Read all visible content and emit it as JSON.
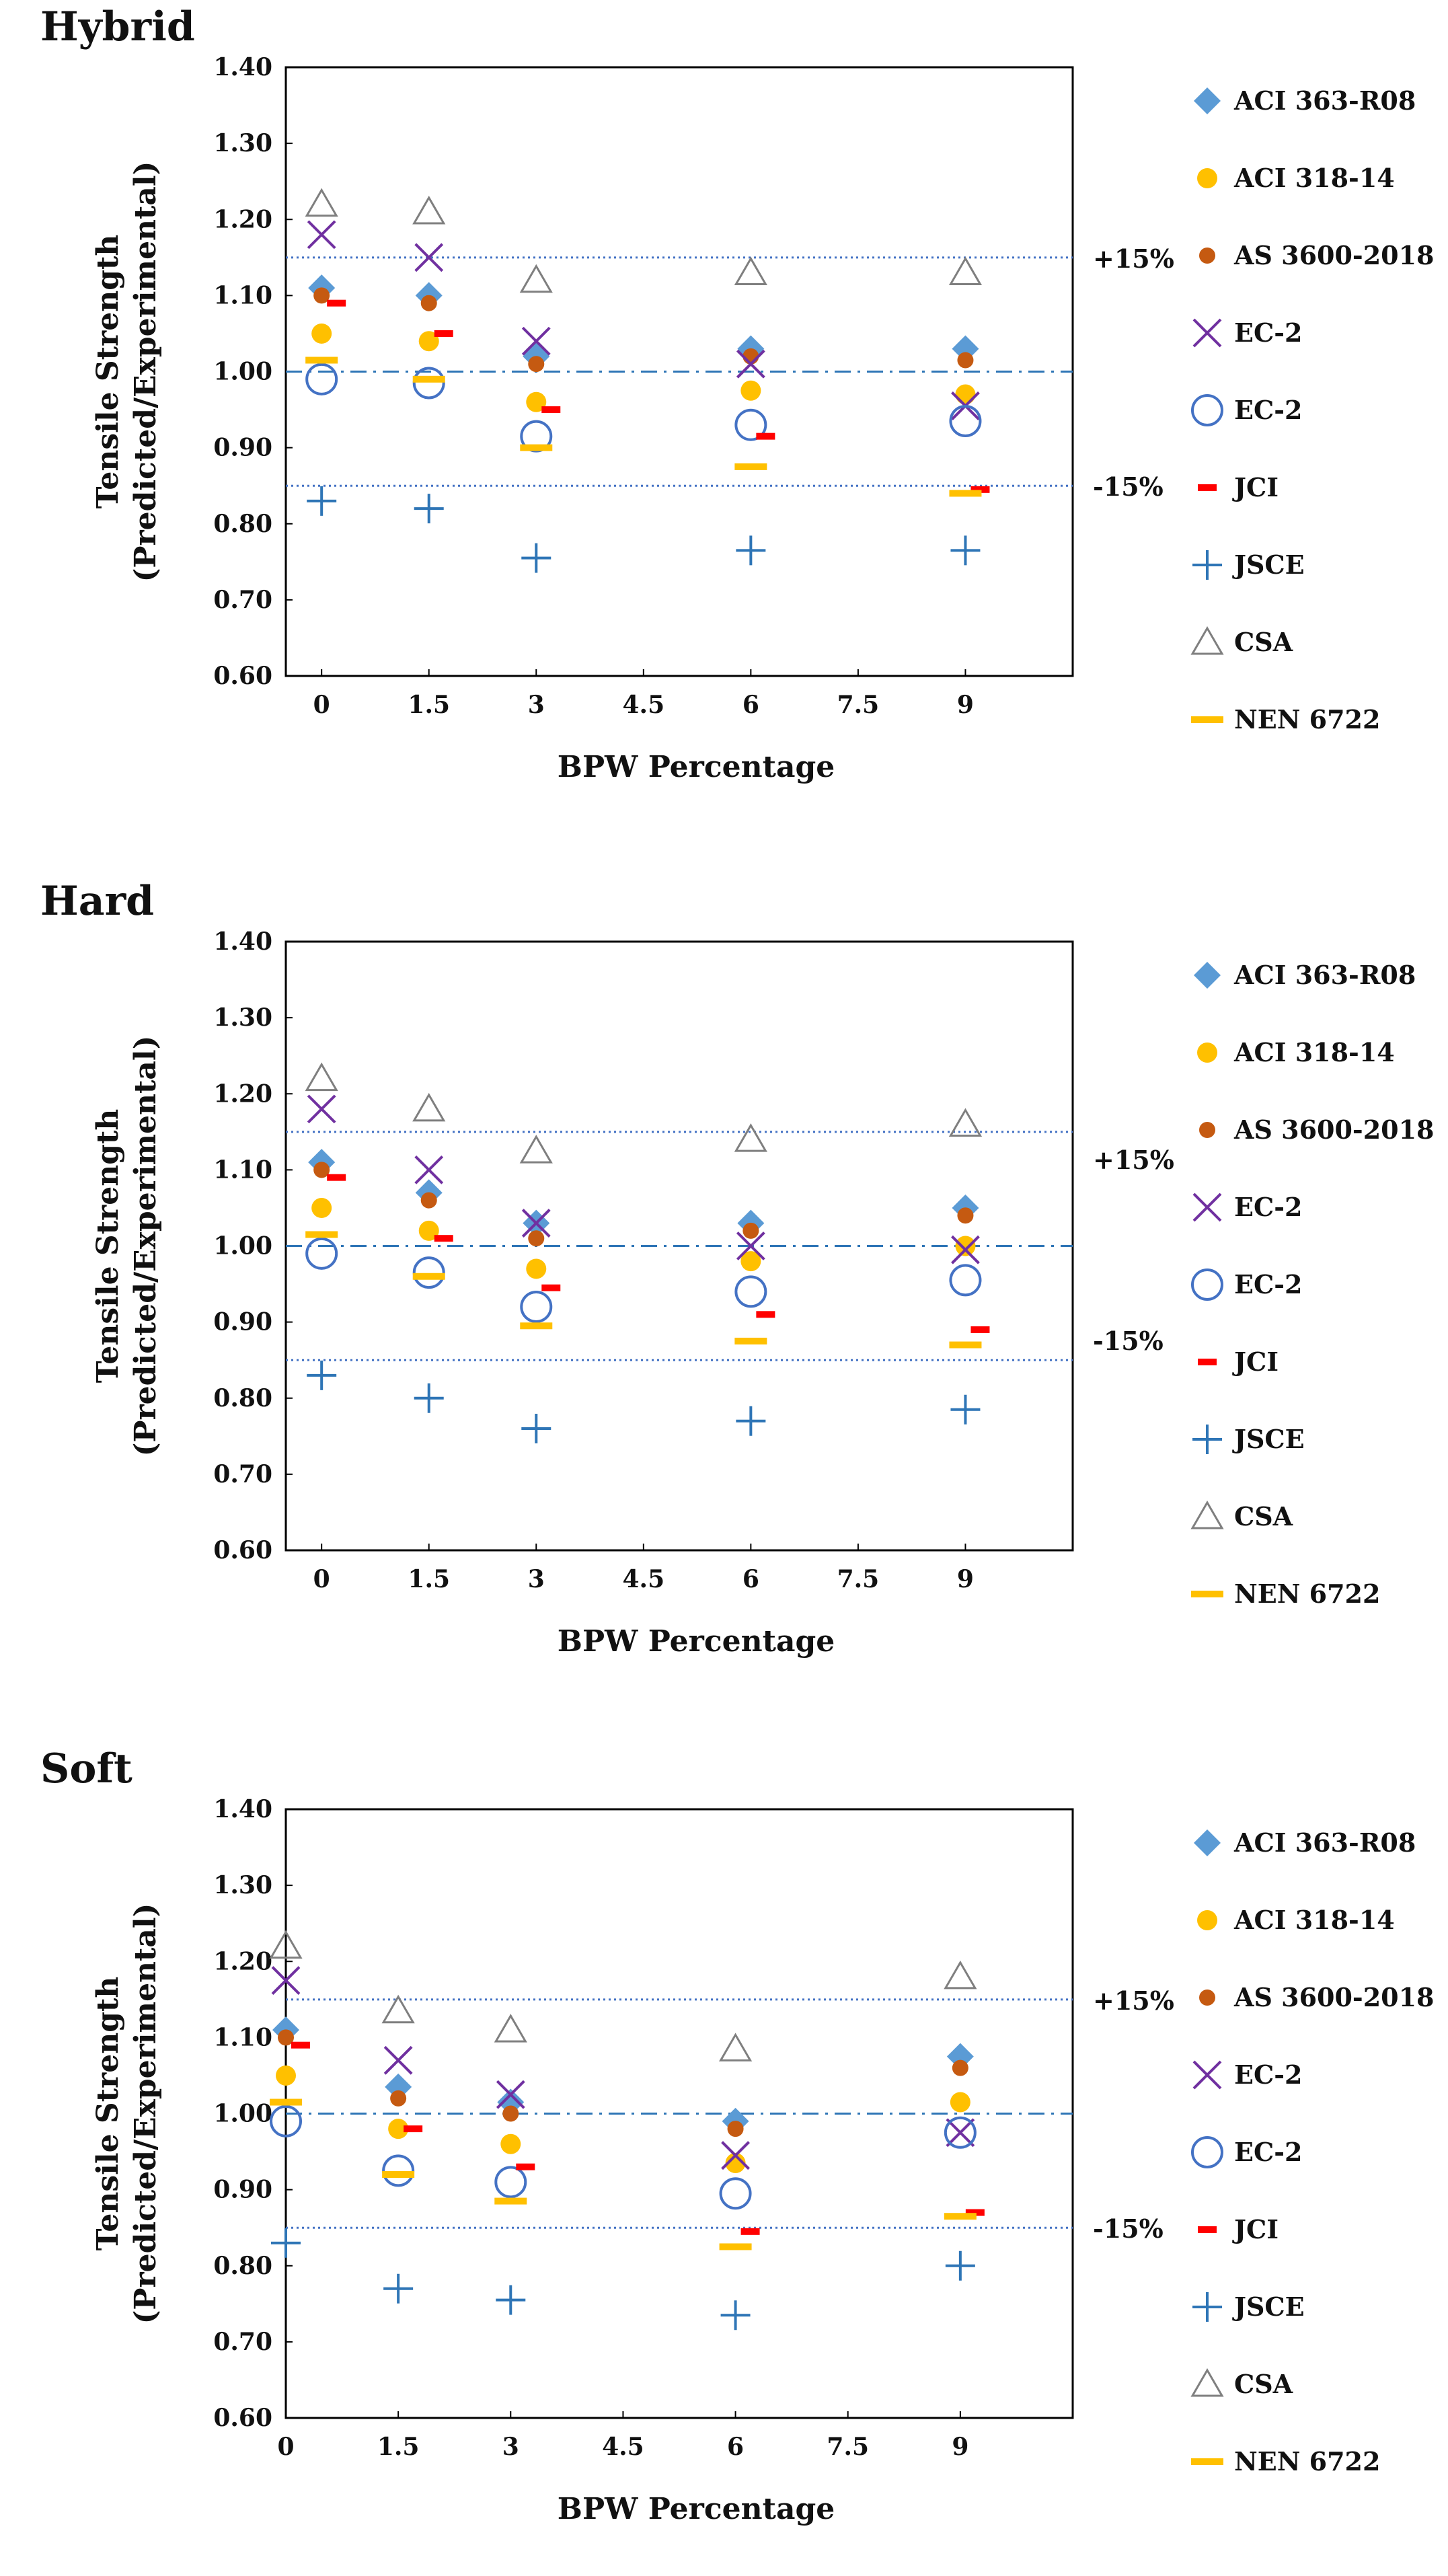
{
  "colors": {
    "aci363": "#5B9BD5",
    "aci318": "#FFC000",
    "as3600": "#C55A11",
    "ec2x": "#7030A0",
    "ec2o": "#4472C4",
    "jci": "#FF0000",
    "jsce": "#2E75B6",
    "csa": "#7F7F7F",
    "nen": "#FFC000",
    "ref": "#2E75B6",
    "band": "#4472C4"
  },
  "chart_data": [
    {
      "type": "scatter",
      "title": "Hybrid",
      "xlabel": "BPW Percentage",
      "ylabel": "Tensile Strength (Predicted/Experimental)",
      "ylabel_lines": [
        "Tensile Strength",
        "(Predicted/Experimental)"
      ],
      "x_ticks": [
        "0",
        "1.5",
        "3",
        "4.5",
        "6",
        "7.5",
        "9"
      ],
      "y_ticks": [
        "1.40",
        "1.30",
        "1.20",
        "1.10",
        "1.00",
        "0.90",
        "0.80",
        "0.70",
        "0.60"
      ],
      "xlim": [
        -0.5,
        10.5
      ],
      "ylim": [
        0.6,
        1.4
      ],
      "x": [
        0,
        1.5,
        3,
        6,
        9
      ],
      "reference_lines": {
        "upper": 1.15,
        "unity": 1.0,
        "lower": 0.85,
        "upper_label": "+15%",
        "lower_label": "-15%"
      },
      "series": [
        {
          "name": "ACI 363-R08",
          "key": "aci363",
          "marker": "diamond",
          "values": [
            1.11,
            1.1,
            1.02,
            1.03,
            1.03
          ]
        },
        {
          "name": "ACI 318-14",
          "key": "aci318",
          "marker": "dot",
          "values": [
            1.05,
            1.04,
            0.96,
            0.975,
            0.97
          ]
        },
        {
          "name": "AS 3600-2018",
          "key": "as3600",
          "marker": "smalldot",
          "values": [
            1.1,
            1.09,
            1.01,
            1.02,
            1.015
          ]
        },
        {
          "name": "EC-2",
          "key": "ec2x",
          "marker": "x",
          "values": [
            1.18,
            1.15,
            1.04,
            1.01,
            0.955
          ]
        },
        {
          "name": "EC-2",
          "key": "ec2o",
          "marker": "circle",
          "values": [
            0.99,
            0.985,
            0.915,
            0.93,
            0.935
          ]
        },
        {
          "name": "JCI",
          "key": "jci",
          "marker": "dash",
          "values": [
            1.09,
            1.05,
            0.95,
            0.915,
            0.845
          ]
        },
        {
          "name": "JSCE",
          "key": "jsce",
          "marker": "plus",
          "values": [
            0.83,
            0.82,
            0.755,
            0.765,
            0.765
          ]
        },
        {
          "name": "CSA",
          "key": "csa",
          "marker": "triangle",
          "values": [
            1.22,
            1.21,
            1.12,
            1.13,
            1.13
          ]
        },
        {
          "name": "NEN 6722",
          "key": "nen",
          "marker": "bar",
          "values": [
            1.015,
            0.99,
            0.9,
            0.875,
            0.84
          ]
        }
      ]
    },
    {
      "type": "scatter",
      "title": "Hard",
      "xlabel": "BPW Percentage",
      "ylabel": "Tensile Strength (Predicted/Experimental)",
      "ylabel_lines": [
        "Tensile Strength",
        "(Predicted/Experimental)"
      ],
      "x_ticks": [
        "0",
        "1.5",
        "3",
        "4.5",
        "6",
        "7.5",
        "9"
      ],
      "y_ticks": [
        "1.40",
        "1.30",
        "1.20",
        "1.10",
        "1.00",
        "0.90",
        "0.80",
        "0.70",
        "0.60"
      ],
      "xlim": [
        -0.5,
        10.5
      ],
      "ylim": [
        0.6,
        1.4
      ],
      "x": [
        0,
        1.5,
        3,
        6,
        9
      ],
      "reference_lines": {
        "upper": 1.15,
        "unity": 1.0,
        "lower": 0.85,
        "upper_label": "+15%",
        "lower_label": "-15%"
      },
      "series": [
        {
          "name": "ACI 363-R08",
          "key": "aci363",
          "marker": "diamond",
          "values": [
            1.11,
            1.07,
            1.03,
            1.03,
            1.05
          ]
        },
        {
          "name": "ACI 318-14",
          "key": "aci318",
          "marker": "dot",
          "values": [
            1.05,
            1.02,
            0.97,
            0.98,
            1.0
          ]
        },
        {
          "name": "AS 3600-2018",
          "key": "as3600",
          "marker": "smalldot",
          "values": [
            1.1,
            1.06,
            1.01,
            1.02,
            1.04
          ]
        },
        {
          "name": "EC-2",
          "key": "ec2x",
          "marker": "x",
          "values": [
            1.18,
            1.1,
            1.03,
            1.0,
            0.995
          ]
        },
        {
          "name": "EC-2",
          "key": "ec2o",
          "marker": "circle",
          "values": [
            0.99,
            0.965,
            0.92,
            0.94,
            0.955
          ]
        },
        {
          "name": "JCI",
          "key": "jci",
          "marker": "dash",
          "values": [
            1.09,
            1.01,
            0.945,
            0.91,
            0.89
          ]
        },
        {
          "name": "JSCE",
          "key": "jsce",
          "marker": "plus",
          "values": [
            0.83,
            0.8,
            0.76,
            0.77,
            0.785
          ]
        },
        {
          "name": "CSA",
          "key": "csa",
          "marker": "triangle",
          "values": [
            1.22,
            1.18,
            1.125,
            1.14,
            1.16
          ]
        },
        {
          "name": "NEN 6722",
          "key": "nen",
          "marker": "bar",
          "values": [
            1.015,
            0.96,
            0.895,
            0.875,
            0.87
          ]
        }
      ]
    },
    {
      "type": "scatter",
      "title": "Soft",
      "xlabel": "BPW Percentage",
      "ylabel": "Tensile Strength (Predicted/Experimental)",
      "ylabel_lines": [
        "Tensile Strength",
        "(Predicted/Experimental)"
      ],
      "x_ticks": [
        "0",
        "1.5",
        "3",
        "4.5",
        "6",
        "7.5",
        "9"
      ],
      "y_ticks": [
        "1.40",
        "1.30",
        "1.20",
        "1.10",
        "1.00",
        "0.90",
        "0.80",
        "0.70",
        "0.60"
      ],
      "xlim": [
        0,
        10.5
      ],
      "ylim": [
        0.6,
        1.4
      ],
      "x": [
        0,
        1.5,
        3,
        6,
        9
      ],
      "reference_lines": {
        "upper": 1.15,
        "unity": 1.0,
        "lower": 0.85,
        "upper_label": "+15%",
        "lower_label": "-15%"
      },
      "series": [
        {
          "name": "ACI 363-R08",
          "key": "aci363",
          "marker": "diamond",
          "values": [
            1.11,
            1.035,
            1.015,
            0.99,
            1.075
          ]
        },
        {
          "name": "ACI 318-14",
          "key": "aci318",
          "marker": "dot",
          "values": [
            1.05,
            0.98,
            0.96,
            0.935,
            1.015
          ]
        },
        {
          "name": "AS 3600-2018",
          "key": "as3600",
          "marker": "smalldot",
          "values": [
            1.1,
            1.02,
            1.0,
            0.98,
            1.06
          ]
        },
        {
          "name": "EC-2",
          "key": "ec2x",
          "marker": "x",
          "values": [
            1.175,
            1.07,
            1.025,
            0.945,
            0.975
          ]
        },
        {
          "name": "EC-2",
          "key": "ec2o",
          "marker": "circle",
          "values": [
            0.99,
            0.925,
            0.91,
            0.895,
            0.975
          ]
        },
        {
          "name": "JCI",
          "key": "jci",
          "marker": "dash",
          "values": [
            1.09,
            0.98,
            0.93,
            0.845,
            0.87
          ]
        },
        {
          "name": "JSCE",
          "key": "jsce",
          "marker": "plus",
          "values": [
            0.83,
            0.77,
            0.755,
            0.735,
            0.8
          ]
        },
        {
          "name": "CSA",
          "key": "csa",
          "marker": "triangle",
          "values": [
            1.22,
            1.135,
            1.11,
            1.085,
            1.18
          ]
        },
        {
          "name": "NEN 6722",
          "key": "nen",
          "marker": "bar",
          "values": [
            1.015,
            0.92,
            0.885,
            0.825,
            0.865
          ]
        }
      ]
    }
  ]
}
